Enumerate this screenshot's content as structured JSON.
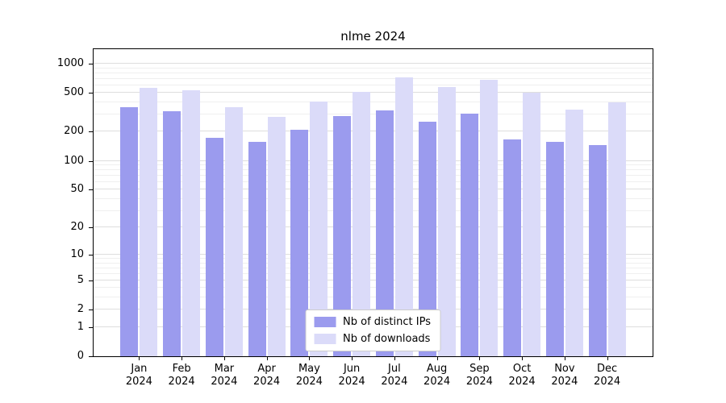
{
  "chart_data": {
    "type": "bar",
    "title": "nlme 2024",
    "x_year": "2024",
    "categories": [
      "Jan",
      "Feb",
      "Mar",
      "Apr",
      "May",
      "Jun",
      "Jul",
      "Aug",
      "Sep",
      "Oct",
      "Nov",
      "Dec"
    ],
    "series": [
      {
        "name": "Nb of distinct IPs",
        "color": "#9b9bee",
        "values": [
          360,
          325,
          172,
          157,
          210,
          290,
          330,
          255,
          305,
          165,
          158,
          145
        ]
      },
      {
        "name": "Nb of downloads",
        "color": "#dbdbf9",
        "values": [
          570,
          530,
          360,
          285,
          410,
          510,
          720,
          575,
          690,
          500,
          335,
          400
        ]
      }
    ],
    "y_ticks": [
      0,
      1,
      2,
      5,
      10,
      20,
      50,
      100,
      200,
      500,
      1000
    ],
    "y_minor_gridlines": [
      3,
      4,
      6,
      7,
      8,
      9,
      30,
      40,
      60,
      70,
      80,
      90,
      300,
      400,
      600,
      700,
      800,
      900
    ],
    "y_scale": "log1p",
    "y_axis_max": 1410,
    "grid": true,
    "legend": {
      "position": "lower center",
      "entries": [
        "Nb of distinct IPs",
        "Nb of downloads"
      ]
    },
    "colors": {
      "major_gridline": "#dedede",
      "minor_gridline": "#efefef",
      "axis": "#000000"
    }
  }
}
